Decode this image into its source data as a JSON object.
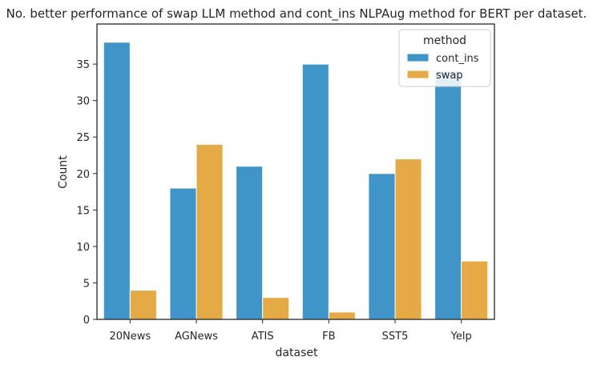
{
  "chart_data": {
    "type": "bar",
    "title": "No. better performance of swap LLM method and cont_ins NLPAug method for BERT per dataset.",
    "xlabel": "dataset",
    "ylabel": "Count",
    "categories": [
      "20News",
      "AGNews",
      "ATIS",
      "FB",
      "SST5",
      "Yelp"
    ],
    "series": [
      {
        "name": "cont_ins",
        "color": "#4095c8",
        "values": [
          38,
          18,
          21,
          35,
          20,
          34
        ]
      },
      {
        "name": "swap",
        "color": "#e5a945",
        "values": [
          4,
          24,
          3,
          1,
          22,
          8
        ]
      }
    ],
    "ylim": [
      0,
      40.5
    ],
    "yticks": [
      0,
      5,
      10,
      15,
      20,
      25,
      30,
      35
    ],
    "grid": false,
    "legend": {
      "title": "method",
      "position": "top-right"
    }
  }
}
